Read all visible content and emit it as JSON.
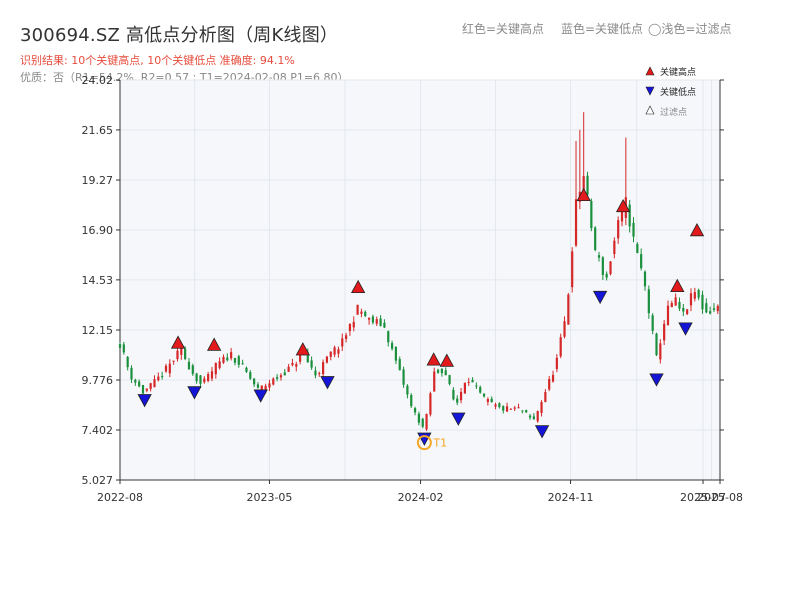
{
  "header": {
    "title": "300694.SZ 高低点分析图（周K线图）",
    "legend_red": "红色=关键高点",
    "legend_blue": "蓝色=关键低点",
    "legend_light": "◯浅色=过滤点",
    "result_line": "识别结果: 10个关键高点, 10个关键低点   准确度: 94.1%",
    "quality_line": "优质：否（R1=54.2%, R2=0.57 ; T1=2024-02-08 P1=6.80）"
  },
  "colors": {
    "up": "#d62728",
    "down": "#1a8f3c",
    "high_marker": "#e31a1c",
    "low_marker": "#1515d8",
    "t1_ring": "#f5a623",
    "plot_bg": "#f5f7fa",
    "grid": "#e4e7ee"
  },
  "chart_data": {
    "type": "candlestick",
    "title": "300694.SZ 高低点分析图（周K线图）",
    "x_tick_labels": [
      "2022-08",
      "2023-05",
      "2024-02",
      "2024-11",
      "2025-07",
      "2025-08"
    ],
    "x_tick_dates": [
      "2022-08-01",
      "2023-05-01",
      "2024-02-01",
      "2024-11-01",
      "2025-07-01",
      "2025-08-01"
    ],
    "x_range": [
      "2022-08-01",
      "2025-08-01"
    ],
    "y_ticks": [
      5.027,
      7.402,
      9.776,
      12.15,
      14.53,
      16.9,
      19.27,
      21.65,
      24.02
    ],
    "y_tick_labels": [
      "5.027",
      "7.402",
      "9.776",
      "12.15",
      "14.53",
      "16.90",
      "19.27",
      "21.65",
      "24.02"
    ],
    "ylim": [
      5.027,
      24.02
    ],
    "price_path": [
      [
        "2022-08-01",
        11.5
      ],
      [
        "2022-08-20",
        10.0
      ],
      [
        "2022-09-12",
        9.2
      ],
      [
        "2022-10-01",
        9.6
      ],
      [
        "2022-10-25",
        10.3
      ],
      [
        "2022-11-20",
        11.2
      ],
      [
        "2022-12-10",
        10.2
      ],
      [
        "2022-12-28",
        9.5
      ],
      [
        "2023-01-25",
        10.5
      ],
      [
        "2023-02-20",
        11.0
      ],
      [
        "2023-03-15",
        10.3
      ],
      [
        "2023-04-10",
        9.3
      ],
      [
        "2023-05-10",
        9.8
      ],
      [
        "2023-06-10",
        10.4
      ],
      [
        "2023-07-01",
        11.0
      ],
      [
        "2023-07-25",
        10.0
      ],
      [
        "2023-08-20",
        11.0
      ],
      [
        "2023-09-10",
        11.5
      ],
      [
        "2023-10-10",
        13.2
      ],
      [
        "2023-10-30",
        12.6
      ],
      [
        "2023-11-25",
        12.4
      ],
      [
        "2023-12-20",
        10.5
      ],
      [
        "2024-01-15",
        8.5
      ],
      [
        "2024-02-08",
        7.4
      ],
      [
        "2024-02-25",
        10.1
      ],
      [
        "2024-03-15",
        10.3
      ],
      [
        "2024-04-05",
        8.5
      ],
      [
        "2024-04-25",
        10.0
      ],
      [
        "2024-05-25",
        8.9
      ],
      [
        "2024-06-25",
        8.4
      ],
      [
        "2024-08-01",
        8.4
      ],
      [
        "2024-08-25",
        7.8
      ],
      [
        "2024-09-20",
        9.5
      ],
      [
        "2024-10-05",
        10.5
      ],
      [
        "2024-10-25",
        13.0
      ],
      [
        "2024-11-10",
        18.0
      ],
      [
        "2024-11-25",
        19.5
      ],
      [
        "2024-12-15",
        16.0
      ],
      [
        "2025-01-05",
        14.5
      ],
      [
        "2025-01-25",
        17.0
      ],
      [
        "2025-02-10",
        18.2
      ],
      [
        "2025-02-25",
        16.3
      ],
      [
        "2025-03-15",
        14.5
      ],
      [
        "2025-04-07",
        10.8
      ],
      [
        "2025-04-25",
        13.0
      ],
      [
        "2025-05-10",
        13.6
      ],
      [
        "2025-05-25",
        12.8
      ],
      [
        "2025-06-15",
        14.0
      ],
      [
        "2025-07-05",
        13.0
      ],
      [
        "2025-08-01",
        13.2
      ]
    ],
    "key_highs": [
      [
        "2022-11-15",
        11.52
      ],
      [
        "2023-01-20",
        11.42
      ],
      [
        "2023-07-01",
        11.2
      ],
      [
        "2023-10-10",
        14.16
      ],
      [
        "2024-02-25",
        10.72
      ],
      [
        "2024-03-20",
        10.66
      ],
      [
        "2024-11-25",
        18.53
      ],
      [
        "2025-02-05",
        18.0
      ],
      [
        "2025-05-15",
        14.21
      ],
      [
        "2025-06-20",
        16.86
      ]
    ],
    "key_lows": [
      [
        "2022-09-15",
        8.85
      ],
      [
        "2022-12-15",
        9.22
      ],
      [
        "2023-04-15",
        9.07
      ],
      [
        "2023-08-15",
        9.7
      ],
      [
        "2024-02-08",
        7.02
      ],
      [
        "2024-04-10",
        7.97
      ],
      [
        "2024-09-10",
        7.37
      ],
      [
        "2024-12-25",
        13.75
      ],
      [
        "2025-04-07",
        9.83
      ],
      [
        "2025-05-30",
        12.25
      ]
    ],
    "t1": {
      "date": "2024-02-08",
      "price": 6.8,
      "label": "T1"
    },
    "legend": [
      "关键高点",
      "关键低点",
      "过滤点"
    ],
    "legend_position": "top-right",
    "grid": true
  }
}
